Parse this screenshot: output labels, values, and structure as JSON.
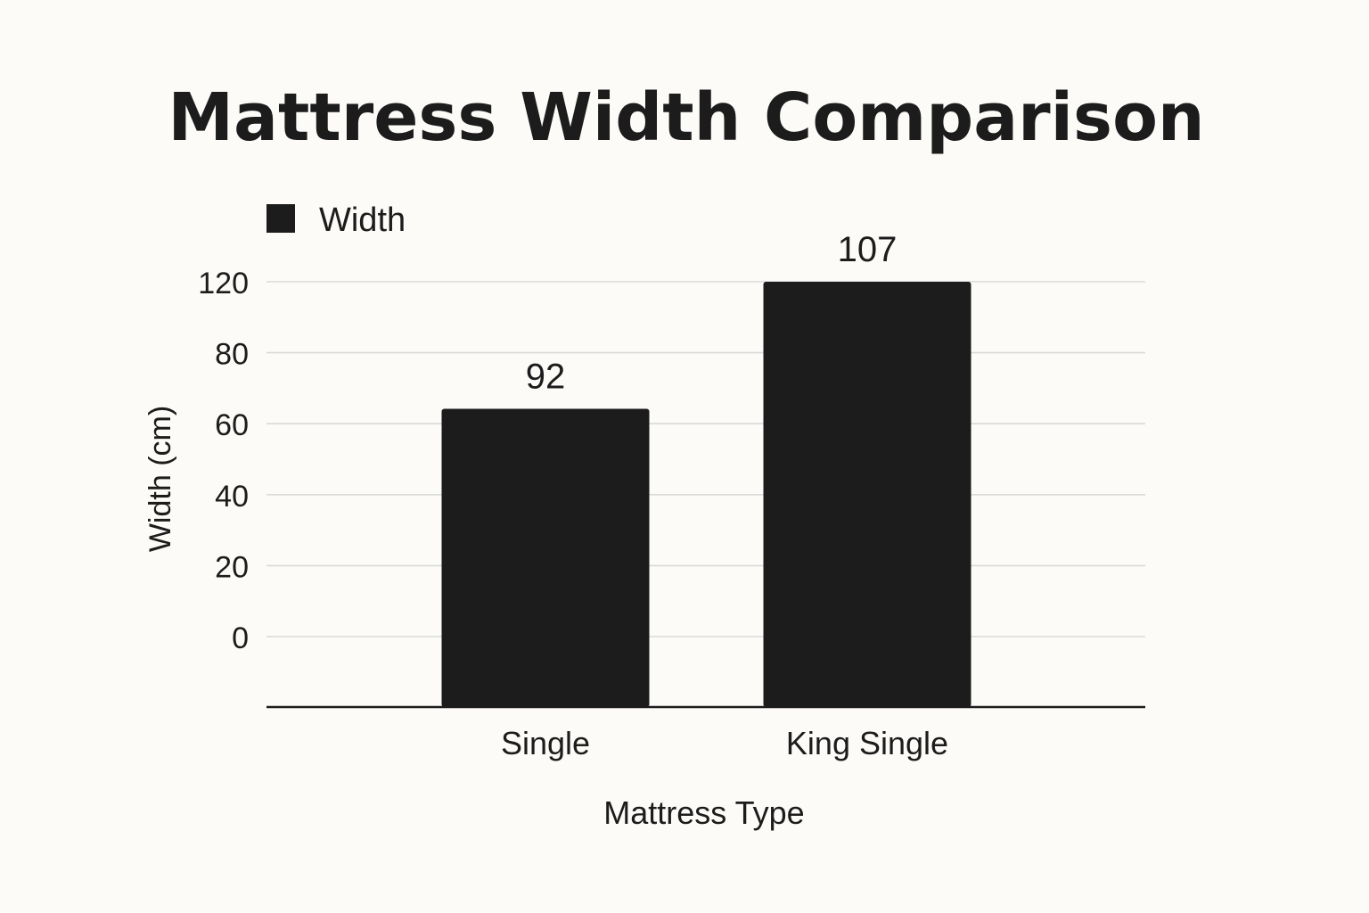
{
  "chart_data": {
    "type": "bar",
    "title": "Mattress Width Comparison",
    "xlabel": "Mattress Type",
    "ylabel": "Width (cm)",
    "legend": {
      "position": "top-left",
      "label": "Width"
    },
    "categories": [
      "Single",
      "King Single"
    ],
    "series": [
      {
        "name": "Width",
        "values": [
          92,
          107
        ],
        "color": "#1c1c1c"
      }
    ],
    "data_labels": [
      "92",
      "107"
    ],
    "yticks": [
      "120",
      "80",
      "60",
      "40",
      "20",
      "0"
    ],
    "grid": true,
    "colors": {
      "background": "#fcfbf8",
      "bar": "#1c1c1c",
      "grid": "#d9d9d9",
      "text": "#1c1c1c"
    }
  }
}
